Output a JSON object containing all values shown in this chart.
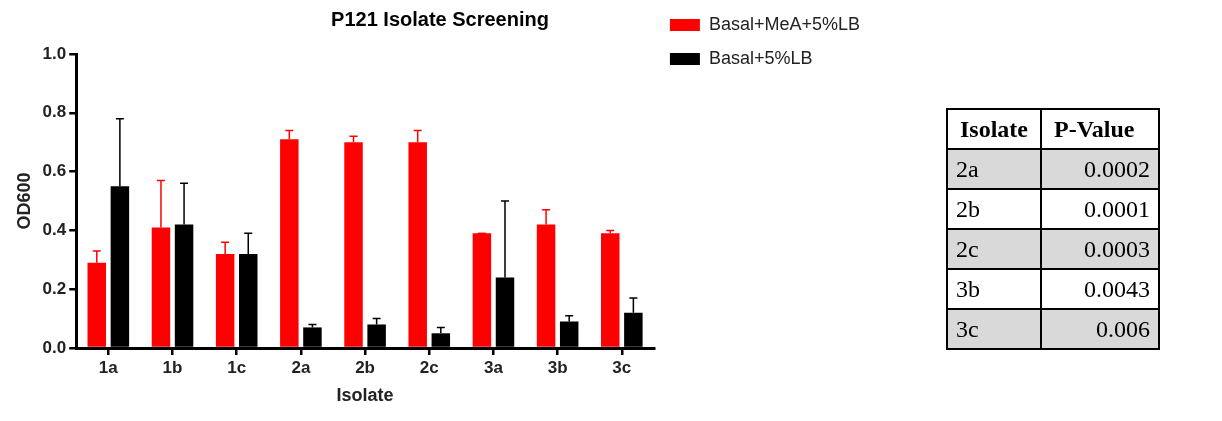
{
  "chart_data": [
    {
      "type": "bar",
      "title": "P121 Isolate Screening",
      "xlabel": "Isolate",
      "ylabel": "OD600",
      "categories": [
        "1a",
        "1b",
        "1c",
        "2a",
        "2b",
        "2c",
        "3a",
        "3b",
        "3c"
      ],
      "series": [
        {
          "name": "Basal+MeA+5%LB",
          "color": "#ff0000",
          "values": [
            0.29,
            0.41,
            0.32,
            0.71,
            0.7,
            0.7,
            0.39,
            0.42,
            0.39
          ],
          "errors": [
            [
              0.29,
              0.33
            ],
            [
              0.41,
              0.57
            ],
            [
              0.32,
              0.36
            ],
            [
              0.71,
              0.74
            ],
            [
              0.7,
              0.72
            ],
            [
              0.7,
              0.74
            ],
            [
              0.39,
              0.39
            ],
            [
              0.42,
              0.47
            ],
            [
              0.39,
              0.4
            ]
          ]
        },
        {
          "name": "Basal+5%LB",
          "color": "#000000",
          "values": [
            0.55,
            0.42,
            0.32,
            0.07,
            0.08,
            0.05,
            0.24,
            0.09,
            0.12
          ],
          "errors": [
            [
              0.55,
              0.78
            ],
            [
              0.42,
              0.56
            ],
            [
              0.32,
              0.39
            ],
            [
              0.07,
              0.08
            ],
            [
              0.08,
              0.1
            ],
            [
              0.05,
              0.07
            ],
            [
              0.24,
              0.5
            ],
            [
              0.09,
              0.11
            ],
            [
              0.12,
              0.17
            ]
          ]
        }
      ],
      "ylim": [
        0,
        1
      ],
      "yticks": [
        {
          "value": 0,
          "label": "0.0"
        },
        {
          "value": 0.2,
          "label": "0.2"
        },
        {
          "value": 0.4,
          "label": "0.4"
        },
        {
          "value": 0.6,
          "label": "0.6"
        },
        {
          "value": 0.8,
          "label": "0.8"
        },
        {
          "value": 1,
          "label": "1.0"
        }
      ],
      "grid": false,
      "legend": "top right"
    },
    {
      "type": "other",
      "annotations": [
        "Isolate",
        "P-Value"
      ],
      "categories": [
        "2a",
        "2b",
        "2c",
        "3b",
        "3c"
      ],
      "values": [
        0.0002,
        0.0001,
        0.0003,
        0.0043,
        0.006
      ],
      "data_labels": true
    }
  ]
}
